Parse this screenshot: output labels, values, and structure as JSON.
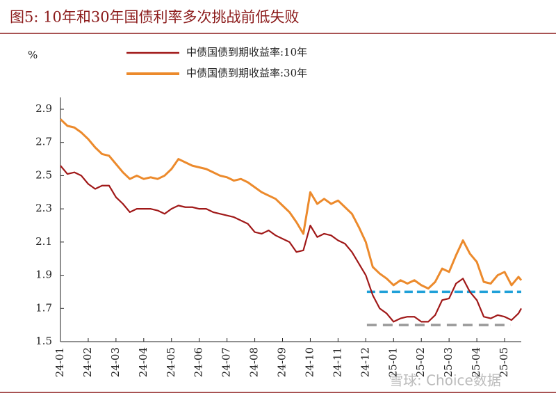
{
  "chart_data": {
    "type": "line",
    "title": "图5:  10年和30年国债利率多次挑战前低失败",
    "y_label": "%",
    "watermark": "雪球: Choice数据",
    "x": [
      0,
      0.25,
      0.5,
      0.75,
      1,
      1.25,
      1.5,
      1.75,
      2,
      2.25,
      2.5,
      2.75,
      3,
      3.25,
      3.5,
      3.75,
      4,
      4.25,
      4.5,
      4.75,
      5,
      5.25,
      5.5,
      5.75,
      6,
      6.25,
      6.5,
      6.75,
      7,
      7.25,
      7.5,
      7.75,
      8,
      8.25,
      8.5,
      8.75,
      9,
      9.25,
      9.5,
      9.75,
      10,
      10.25,
      10.5,
      10.75,
      11,
      11.25,
      11.5,
      11.75,
      12,
      12.25,
      12.5,
      12.75,
      13,
      13.25,
      13.5,
      13.75,
      14,
      14.25,
      14.5,
      14.75,
      15,
      15.25,
      15.5,
      15.75,
      16,
      16.25,
      16.5,
      16.6
    ],
    "series": [
      {
        "name": "中债国债到期收益率:10年",
        "color": "#a01818",
        "values": [
          2.56,
          2.51,
          2.52,
          2.5,
          2.45,
          2.42,
          2.44,
          2.44,
          2.37,
          2.33,
          2.28,
          2.3,
          2.3,
          2.3,
          2.29,
          2.27,
          2.3,
          2.32,
          2.31,
          2.31,
          2.3,
          2.3,
          2.28,
          2.27,
          2.26,
          2.25,
          2.23,
          2.21,
          2.16,
          2.15,
          2.17,
          2.14,
          2.12,
          2.1,
          2.04,
          2.05,
          2.2,
          2.13,
          2.15,
          2.14,
          2.11,
          2.09,
          2.04,
          1.97,
          1.9,
          1.78,
          1.7,
          1.67,
          1.62,
          1.64,
          1.65,
          1.65,
          1.62,
          1.62,
          1.66,
          1.75,
          1.76,
          1.85,
          1.88,
          1.8,
          1.75,
          1.65,
          1.64,
          1.66,
          1.65,
          1.63,
          1.67,
          1.7
        ]
      },
      {
        "name": "中债国债到期收益率:30年",
        "color": "#ec8a2c",
        "values": [
          2.84,
          2.8,
          2.79,
          2.76,
          2.72,
          2.67,
          2.63,
          2.62,
          2.57,
          2.52,
          2.48,
          2.5,
          2.48,
          2.49,
          2.48,
          2.5,
          2.54,
          2.6,
          2.58,
          2.56,
          2.55,
          2.54,
          2.52,
          2.5,
          2.49,
          2.47,
          2.48,
          2.46,
          2.43,
          2.4,
          2.38,
          2.36,
          2.32,
          2.28,
          2.22,
          2.15,
          2.4,
          2.33,
          2.36,
          2.33,
          2.35,
          2.31,
          2.27,
          2.19,
          2.1,
          1.95,
          1.91,
          1.88,
          1.84,
          1.87,
          1.85,
          1.87,
          1.84,
          1.82,
          1.86,
          1.94,
          1.92,
          2.02,
          2.11,
          2.03,
          1.98,
          1.86,
          1.85,
          1.9,
          1.92,
          1.84,
          1.89,
          1.87
        ]
      }
    ],
    "reference_lines": [
      {
        "value": 1.8,
        "color": "#1fa0d8"
      },
      {
        "value": 1.6,
        "color": "#9a9a9a"
      }
    ],
    "xlim": [
      0,
      16.6
    ],
    "xticks": [
      {
        "value": 0,
        "label": "24-01"
      },
      {
        "value": 1,
        "label": "24-02"
      },
      {
        "value": 2,
        "label": "24-03"
      },
      {
        "value": 3,
        "label": "24-04"
      },
      {
        "value": 4,
        "label": "24-05"
      },
      {
        "value": 5,
        "label": "24-06"
      },
      {
        "value": 6,
        "label": "24-07"
      },
      {
        "value": 7,
        "label": "24-08"
      },
      {
        "value": 8,
        "label": "24-09"
      },
      {
        "value": 9,
        "label": "24-10"
      },
      {
        "value": 10,
        "label": "24-11"
      },
      {
        "value": 11,
        "label": "24-12"
      },
      {
        "value": 12,
        "label": "25-01"
      },
      {
        "value": 13,
        "label": "25-02"
      },
      {
        "value": 14,
        "label": "25-03"
      },
      {
        "value": 15,
        "label": "25-04"
      },
      {
        "value": 16,
        "label": "25-05"
      }
    ],
    "ylim": [
      1.5,
      2.9
    ],
    "yticks": [
      1.5,
      1.7,
      1.9,
      2.1,
      2.3,
      2.5,
      2.7,
      2.9
    ]
  }
}
